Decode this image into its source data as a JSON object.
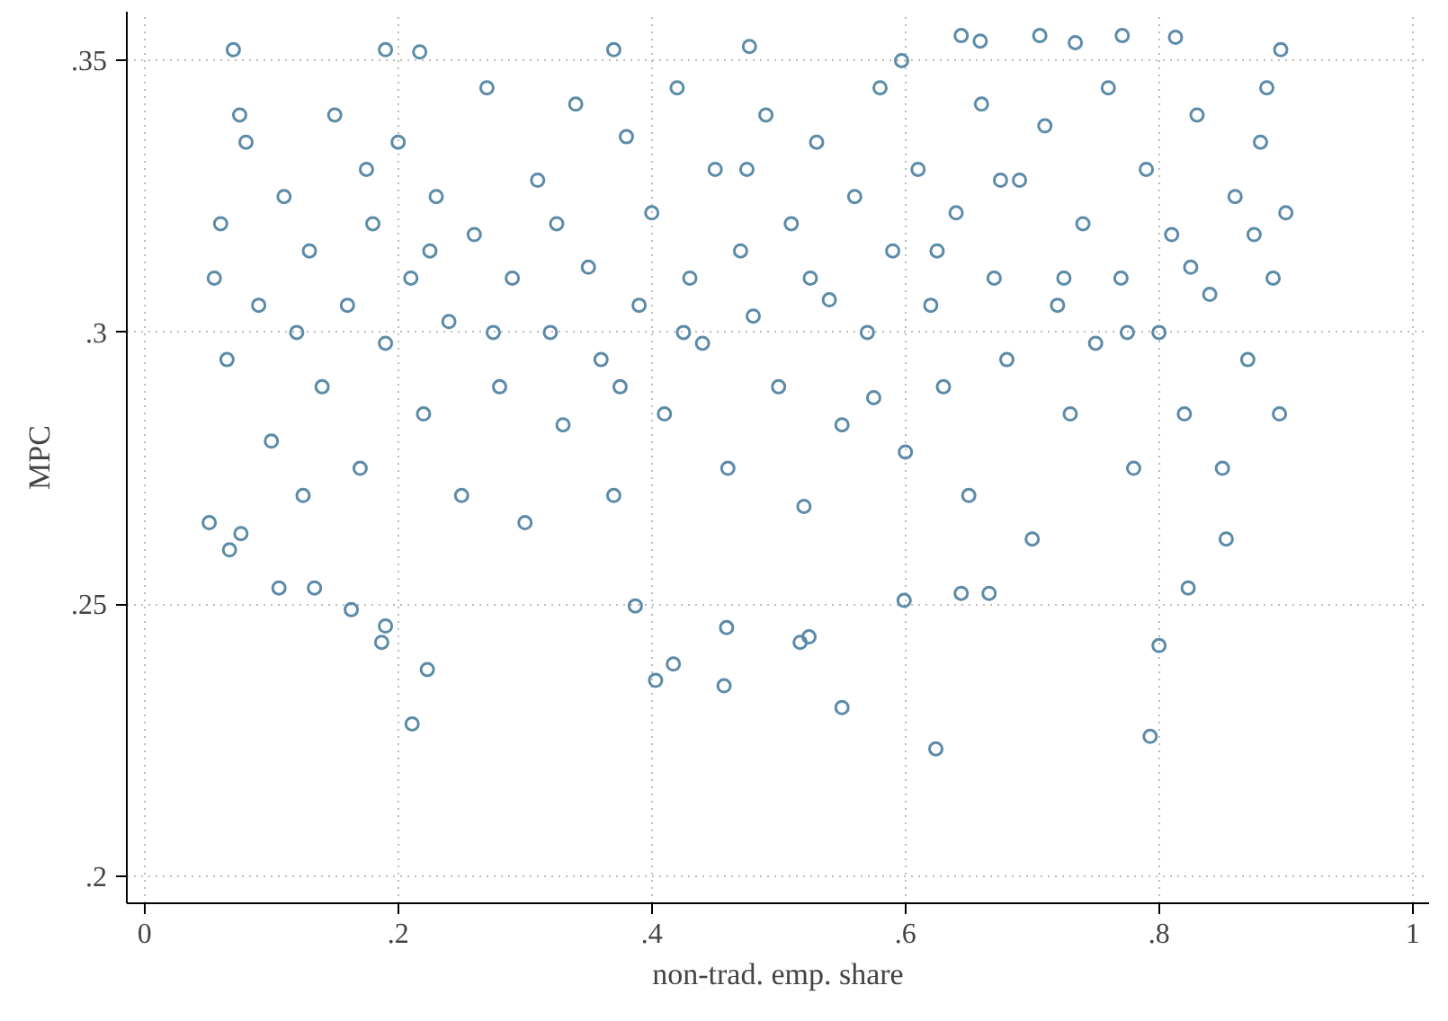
{
  "chart_data": {
    "type": "scatter",
    "xlabel": "non-trad. emp. share",
    "ylabel": "MPC",
    "x": [
      0.051,
      0.07,
      0.211,
      0.223,
      0.55,
      0.624,
      0.793,
      0.8,
      0.19,
      0.187,
      0.403,
      0.417,
      0.457,
      0.459,
      0.517,
      0.524,
      0.599,
      0.644,
      0.666,
      0.163,
      0.106,
      0.134,
      0.823,
      0.853,
      0.387,
      0.076,
      0.067,
      0.19,
      0.217,
      0.37,
      0.477,
      0.597,
      0.644,
      0.659,
      0.706,
      0.813,
      0.896,
      0.771,
      0.734,
      0.055,
      0.06,
      0.065,
      0.08,
      0.09,
      0.1,
      0.11,
      0.12,
      0.13,
      0.14,
      0.15,
      0.16,
      0.17,
      0.18,
      0.19,
      0.2,
      0.21,
      0.22,
      0.23,
      0.24,
      0.25,
      0.26,
      0.27,
      0.28,
      0.29,
      0.3,
      0.31,
      0.32,
      0.33,
      0.34,
      0.35,
      0.36,
      0.37,
      0.38,
      0.39,
      0.4,
      0.41,
      0.42,
      0.43,
      0.44,
      0.45,
      0.46,
      0.47,
      0.48,
      0.49,
      0.5,
      0.51,
      0.52,
      0.53,
      0.54,
      0.55,
      0.56,
      0.57,
      0.58,
      0.59,
      0.6,
      0.61,
      0.62,
      0.63,
      0.64,
      0.65,
      0.66,
      0.67,
      0.68,
      0.69,
      0.7,
      0.71,
      0.72,
      0.73,
      0.74,
      0.75,
      0.76,
      0.77,
      0.78,
      0.79,
      0.8,
      0.81,
      0.82,
      0.83,
      0.84,
      0.85,
      0.86,
      0.87,
      0.88,
      0.89,
      0.9,
      0.895,
      0.885,
      0.075,
      0.125,
      0.175,
      0.225,
      0.275,
      0.325,
      0.375,
      0.425,
      0.475,
      0.525,
      0.575,
      0.625,
      0.675,
      0.725,
      0.775,
      0.825,
      0.875
    ],
    "values": [
      0.265,
      0.352,
      0.228,
      0.238,
      0.231,
      0.2234,
      0.2257,
      0.2424,
      0.246,
      0.243,
      0.236,
      0.239,
      0.235,
      0.2457,
      0.243,
      0.244,
      0.2507,
      0.252,
      0.252,
      0.249,
      0.253,
      0.253,
      0.253,
      0.262,
      0.2497,
      0.263,
      0.26,
      0.352,
      0.3516,
      0.352,
      0.3526,
      0.35,
      0.3546,
      0.3536,
      0.3546,
      0.3543,
      0.352,
      0.3546,
      0.3533,
      0.31,
      0.32,
      0.295,
      0.335,
      0.305,
      0.28,
      0.325,
      0.3,
      0.315,
      0.29,
      0.34,
      0.305,
      0.275,
      0.32,
      0.298,
      0.335,
      0.31,
      0.285,
      0.325,
      0.302,
      0.27,
      0.318,
      0.345,
      0.29,
      0.31,
      0.265,
      0.328,
      0.3,
      0.283,
      0.342,
      0.312,
      0.295,
      0.27,
      0.336,
      0.305,
      0.322,
      0.285,
      0.345,
      0.31,
      0.298,
      0.33,
      0.275,
      0.315,
      0.303,
      0.34,
      0.29,
      0.32,
      0.268,
      0.335,
      0.306,
      0.283,
      0.325,
      0.3,
      0.345,
      0.315,
      0.278,
      0.33,
      0.305,
      0.29,
      0.322,
      0.27,
      0.342,
      0.31,
      0.295,
      0.328,
      0.262,
      0.338,
      0.305,
      0.285,
      0.32,
      0.298,
      0.345,
      0.31,
      0.275,
      0.33,
      0.3,
      0.318,
      0.285,
      0.34,
      0.307,
      0.275,
      0.325,
      0.295,
      0.335,
      0.31,
      0.322,
      0.285,
      0.345,
      0.34,
      0.27,
      0.33,
      0.315,
      0.3,
      0.32,
      0.29,
      0.3,
      0.33,
      0.31,
      0.288,
      0.315,
      0.328,
      0.31,
      0.3,
      0.312,
      0.318
    ],
    "color": "#5b8ba8",
    "marker": "circle",
    "grid": true,
    "xlim": [
      -0.014,
      1.013
    ],
    "ylim": [
      0.195,
      0.359
    ],
    "xticks": [
      0,
      {
        "value": 0.2,
        "label": ".2"
      },
      {
        "value": 0.4,
        "label": ".4"
      },
      {
        "value": 0.6,
        "label": ".6"
      },
      {
        "value": 0.8,
        "label": ".8"
      },
      1
    ],
    "yticks": [
      {
        "value": 0.2,
        "label": ".2"
      },
      {
        "value": 0.25,
        "label": ".25"
      },
      {
        "value": 0.3,
        "label": ".3"
      },
      {
        "value": 0.35,
        "label": ".35"
      }
    ]
  }
}
